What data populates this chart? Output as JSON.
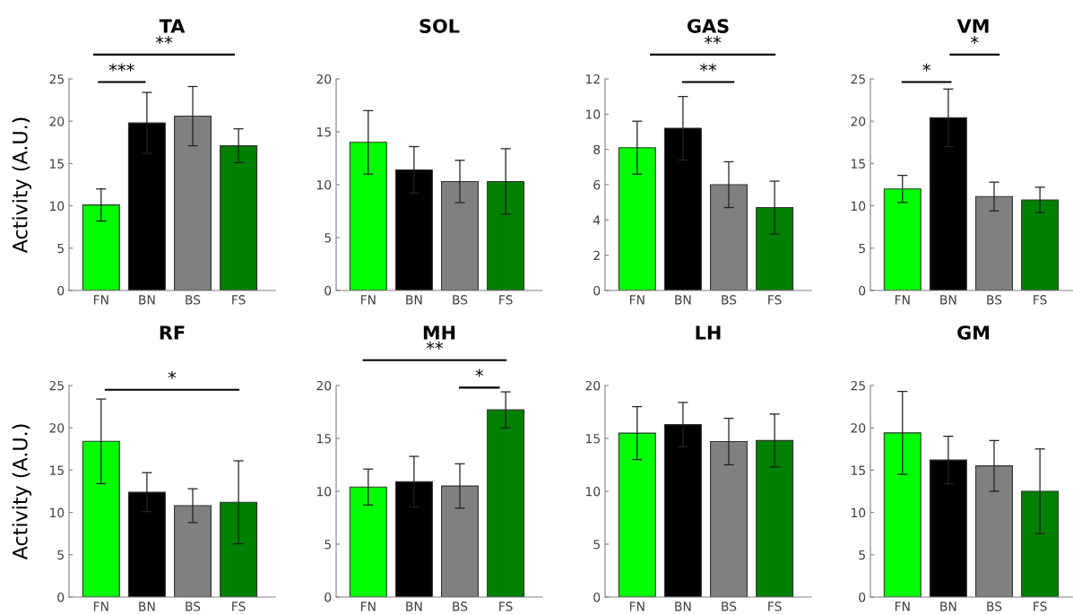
{
  "chart_data": [
    {
      "type": "bar",
      "title": "TA",
      "ylabel": "Activity (A.U.)",
      "categories": [
        "FN",
        "BN",
        "BS",
        "FS"
      ],
      "values": [
        10.1,
        19.8,
        20.6,
        17.1
      ],
      "errors": [
        1.9,
        3.6,
        3.5,
        2.0
      ],
      "colors": [
        "#00ff00",
        "#000000",
        "#808080",
        "#008000"
      ],
      "ylim": [
        0,
        25
      ],
      "yticks": [
        0,
        5,
        10,
        15,
        20,
        25
      ],
      "annotations": [
        "***",
        "**"
      ]
    },
    {
      "type": "bar",
      "title": "SOL",
      "categories": [
        "FN",
        "BN",
        "BS",
        "FS"
      ],
      "values": [
        14.0,
        11.4,
        10.3,
        10.3
      ],
      "errors": [
        3.0,
        2.2,
        2.0,
        3.1
      ],
      "colors": [
        "#00ff00",
        "#000000",
        "#808080",
        "#008000"
      ],
      "ylim": [
        0,
        20
      ],
      "yticks": [
        0,
        5,
        10,
        15,
        20
      ]
    },
    {
      "type": "bar",
      "title": "GAS",
      "categories": [
        "FN",
        "BN",
        "BS",
        "FS"
      ],
      "values": [
        8.1,
        9.2,
        6.0,
        4.7
      ],
      "errors": [
        1.5,
        1.8,
        1.3,
        1.5
      ],
      "colors": [
        "#00ff00",
        "#000000",
        "#808080",
        "#008000"
      ],
      "ylim": [
        0,
        12
      ],
      "yticks": [
        0,
        2,
        4,
        6,
        8,
        10,
        12
      ],
      "annotations": [
        "**",
        "**"
      ]
    },
    {
      "type": "bar",
      "title": "VM",
      "categories": [
        "FN",
        "BN",
        "BS",
        "FS"
      ],
      "values": [
        12.0,
        20.4,
        11.1,
        10.7
      ],
      "errors": [
        1.6,
        3.4,
        1.7,
        1.5
      ],
      "colors": [
        "#00ff00",
        "#000000",
        "#808080",
        "#008000"
      ],
      "ylim": [
        0,
        25
      ],
      "yticks": [
        0,
        5,
        10,
        15,
        20,
        25
      ],
      "annotations": [
        "*",
        "*"
      ]
    },
    {
      "type": "bar",
      "title": "RF",
      "ylabel": "Activity (A.U.)",
      "categories": [
        "FN",
        "BN",
        "BS",
        "FS"
      ],
      "values": [
        18.4,
        12.4,
        10.8,
        11.2
      ],
      "errors": [
        5.0,
        2.3,
        2.0,
        4.9
      ],
      "colors": [
        "#00ff00",
        "#000000",
        "#808080",
        "#008000"
      ],
      "ylim": [
        0,
        25
      ],
      "yticks": [
        0,
        5,
        10,
        15,
        20,
        25
      ],
      "annotations": [
        "*"
      ]
    },
    {
      "type": "bar",
      "title": "MH",
      "categories": [
        "FN",
        "BN",
        "BS",
        "FS"
      ],
      "values": [
        10.4,
        10.9,
        10.5,
        17.7
      ],
      "errors": [
        1.7,
        2.4,
        2.1,
        1.7
      ],
      "colors": [
        "#00ff00",
        "#000000",
        "#808080",
        "#008000"
      ],
      "ylim": [
        0,
        20
      ],
      "yticks": [
        0,
        5,
        10,
        15,
        20
      ],
      "annotations": [
        "**",
        "*"
      ]
    },
    {
      "type": "bar",
      "title": "LH",
      "categories": [
        "FN",
        "BN",
        "BS",
        "FS"
      ],
      "values": [
        15.5,
        16.3,
        14.7,
        14.8
      ],
      "errors": [
        2.5,
        2.1,
        2.2,
        2.5
      ],
      "colors": [
        "#00ff00",
        "#000000",
        "#808080",
        "#008000"
      ],
      "ylim": [
        0,
        20
      ],
      "yticks": [
        0,
        5,
        10,
        15,
        20
      ]
    },
    {
      "type": "bar",
      "title": "GM",
      "categories": [
        "FN",
        "BN",
        "BS",
        "FS"
      ],
      "values": [
        19.4,
        16.2,
        15.5,
        12.5
      ],
      "errors": [
        4.9,
        2.8,
        3.0,
        5.0
      ],
      "colors": [
        "#00ff00",
        "#000000",
        "#808080",
        "#008000"
      ],
      "ylim": [
        0,
        25
      ],
      "yticks": [
        0,
        5,
        10,
        15,
        20,
        25
      ]
    }
  ]
}
